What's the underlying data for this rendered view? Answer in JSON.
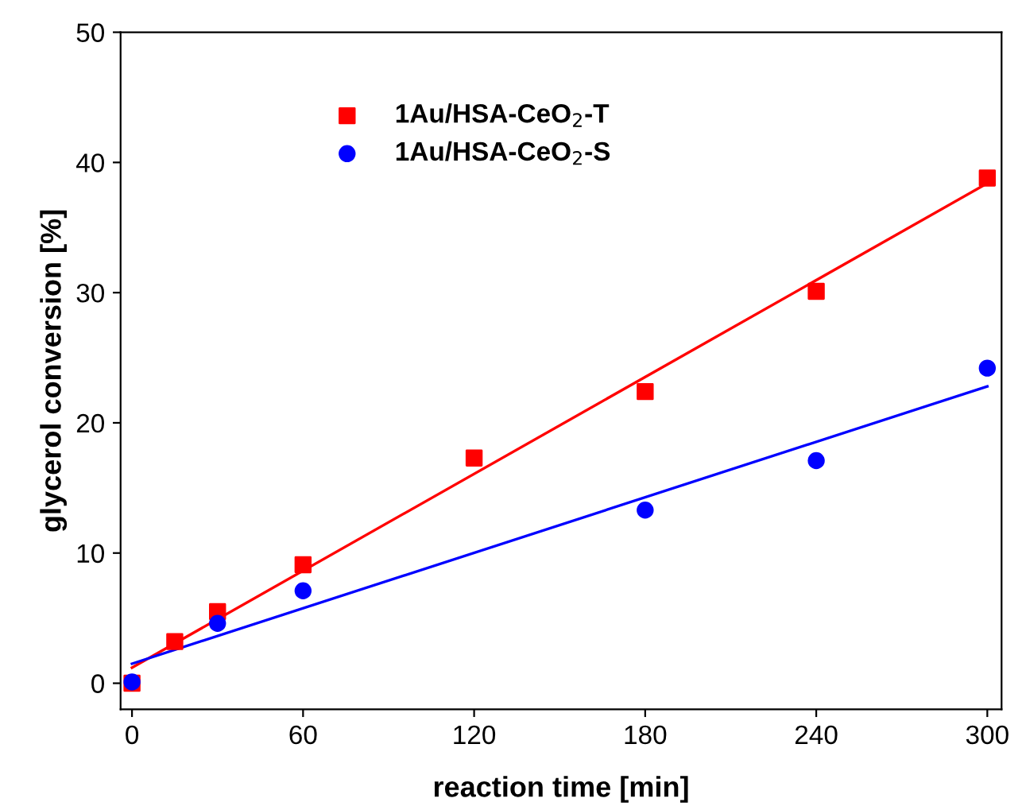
{
  "chart_data": {
    "type": "scatter",
    "xlabel": "reaction time [min]",
    "ylabel": "glycerol conversion [%]",
    "xlim": [
      -4,
      305
    ],
    "ylim": [
      -2,
      50
    ],
    "xticks": [
      0,
      60,
      120,
      180,
      240,
      300
    ],
    "yticks": [
      0,
      10,
      20,
      30,
      40,
      50
    ],
    "grid": false,
    "legend": "top left",
    "series": [
      {
        "name": "1Au/HSA-CeO$_{2}$-T",
        "color": "#ff0000",
        "marker": "square",
        "x": [
          0,
          15,
          30,
          60,
          120,
          180,
          240,
          300
        ],
        "values": [
          0,
          3.2,
          5.5,
          9.1,
          17.3,
          22.4,
          30.1,
          38.8
        ]
      },
      {
        "name": "1Au/HSA-CeO$_{2}$-S",
        "color": "#0000ff",
        "marker": "circle",
        "x": [
          0,
          30,
          60,
          180,
          240,
          300
        ],
        "values": [
          0.1,
          4.6,
          7.1,
          13.3,
          17.1,
          24.2
        ]
      },
      {
        "type": "line",
        "color": "#ff0000",
        "x": [
          0,
          300
        ],
        "values": [
          1.2,
          38.4
        ]
      },
      {
        "type": "line",
        "color": "#0000ff",
        "x": [
          0,
          300
        ],
        "values": [
          1.5,
          22.8
        ]
      }
    ]
  }
}
